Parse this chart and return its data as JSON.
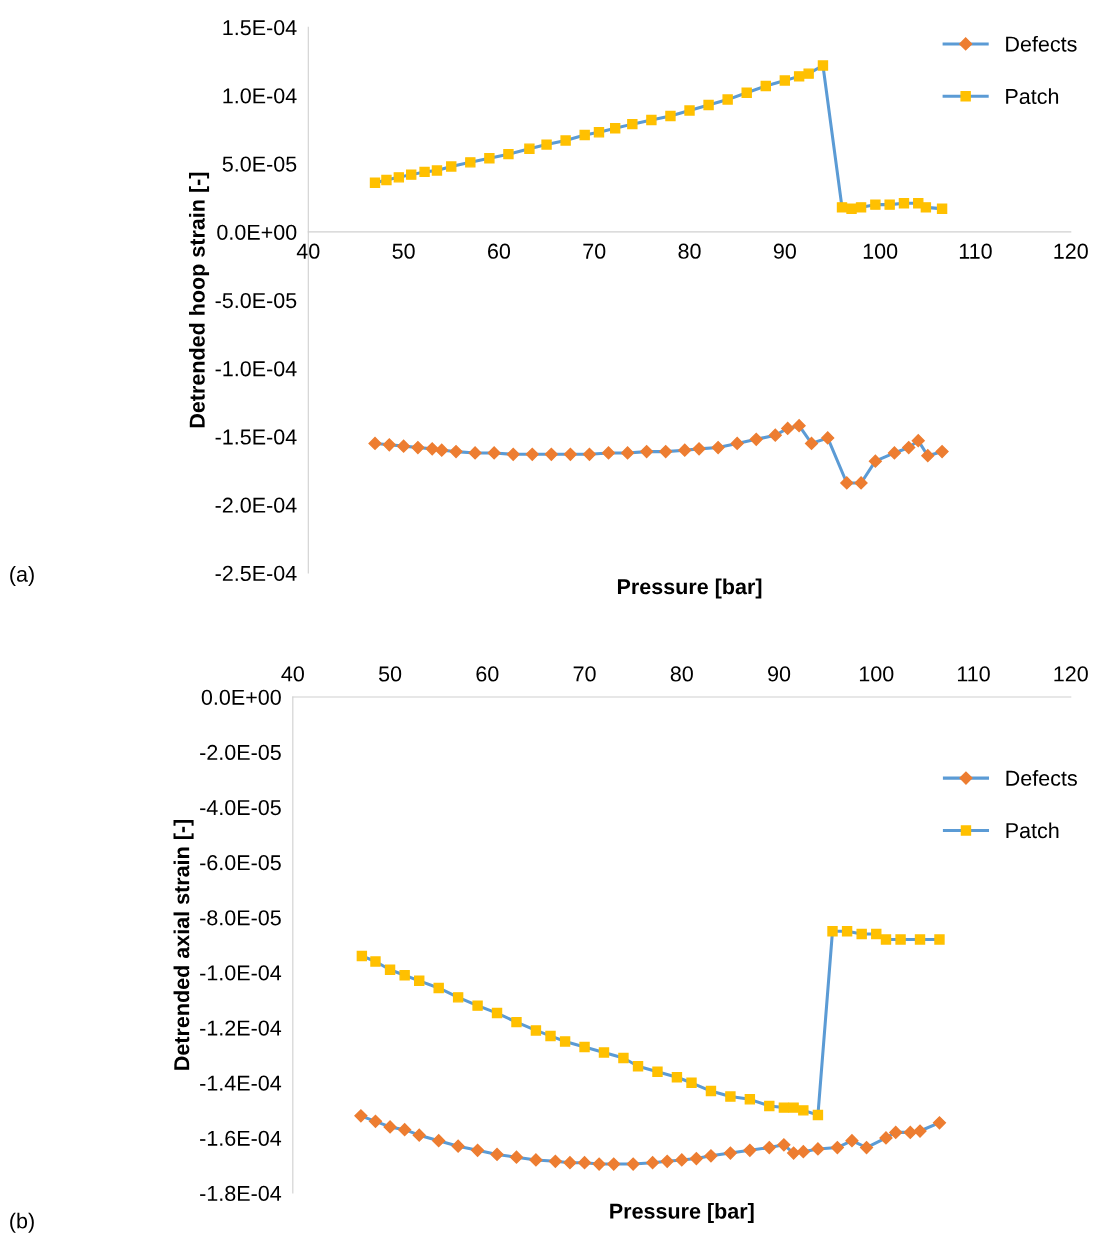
{
  "chart_data": [
    {
      "type": "line",
      "xlabel": "Pressure [bar]",
      "ylabel": "Detrended hoop strain [-]",
      "annotations": [
        "(a)"
      ],
      "xlim": [
        40,
        120
      ],
      "xticks": [
        40,
        50,
        60,
        70,
        80,
        90,
        100,
        110,
        120
      ],
      "ylim": [
        -0.00025,
        0.00015
      ],
      "yticks": [
        {
          "value": -0.00025,
          "label": "-2.5E-04"
        },
        {
          "value": -0.0002,
          "label": "-2.0E-04"
        },
        {
          "value": -0.00015,
          "label": "-1.5E-04"
        },
        {
          "value": -0.0001,
          "label": "-1.0E-04"
        },
        {
          "value": -5e-05,
          "label": "-5.0E-05"
        },
        {
          "value": 0,
          "label": "0.0E+00"
        },
        {
          "value": 5e-05,
          "label": "5.0E-05"
        },
        {
          "value": 0.0001,
          "label": "1.0E-04"
        },
        {
          "value": 0.00015,
          "label": "1.5E-04"
        }
      ],
      "grid": false,
      "legend": "top right",
      "line_style": "solid",
      "series": [
        {
          "name": "Defects",
          "color": "#ed7d31",
          "marker": "diamond",
          "x": [
            47.0,
            48.5,
            50.0,
            51.5,
            53.0,
            54.0,
            55.5,
            57.5,
            59.5,
            61.5,
            63.5,
            65.5,
            67.5,
            69.5,
            71.5,
            73.5,
            75.5,
            77.5,
            79.5,
            81.0,
            83.0,
            85.0,
            87.0,
            89.0,
            90.3,
            91.5,
            92.8,
            94.5,
            96.5,
            98.0,
            99.5,
            101.5,
            103.0,
            104.0,
            105.0,
            106.5
          ],
          "values": [
            -0.000155,
            -0.000156,
            -0.000157,
            -0.000158,
            -0.000159,
            -0.00016,
            -0.000161,
            -0.000162,
            -0.000162,
            -0.000163,
            -0.000163,
            -0.000163,
            -0.000163,
            -0.000163,
            -0.000162,
            -0.000162,
            -0.000161,
            -0.000161,
            -0.00016,
            -0.000159,
            -0.000158,
            -0.000155,
            -0.000152,
            -0.000149,
            -0.000144,
            -0.000142,
            -0.000155,
            -0.000151,
            -0.000184,
            -0.000184,
            -0.000168,
            -0.000162,
            -0.000158,
            -0.000153,
            -0.000164,
            -0.000161
          ]
        },
        {
          "name": "Patch",
          "color": "#ffc000",
          "marker": "square",
          "x": [
            47.0,
            48.2,
            49.5,
            50.8,
            52.2,
            53.5,
            55.0,
            57.0,
            59.0,
            61.0,
            63.2,
            65.0,
            67.0,
            69.0,
            70.5,
            72.2,
            74.0,
            76.0,
            78.0,
            80.0,
            82.0,
            84.0,
            86.0,
            88.0,
            90.0,
            91.5,
            92.5,
            94.0,
            96.0,
            97.0,
            98.0,
            99.5,
            101.0,
            102.5,
            104.0,
            104.8,
            106.5
          ],
          "values": [
            3.6e-05,
            3.8e-05,
            4e-05,
            4.2e-05,
            4.4e-05,
            4.5e-05,
            4.8e-05,
            5.1e-05,
            5.4e-05,
            5.7e-05,
            6.1e-05,
            6.4e-05,
            6.7e-05,
            7.1e-05,
            7.3e-05,
            7.6e-05,
            7.9e-05,
            8.2e-05,
            8.5e-05,
            8.9e-05,
            9.3e-05,
            9.7e-05,
            0.000102,
            0.000107,
            0.000111,
            0.000114,
            0.000116,
            0.000122,
            1.8e-05,
            1.7e-05,
            1.8e-05,
            2e-05,
            2e-05,
            2.1e-05,
            2.1e-05,
            1.8e-05,
            1.7e-05
          ]
        }
      ]
    },
    {
      "type": "line",
      "xlabel": "Pressure [bar]",
      "ylabel": "Detrended axial strain [-]",
      "annotations": [
        "(b)"
      ],
      "xlim": [
        40,
        120
      ],
      "xticks": [
        40,
        50,
        60,
        70,
        80,
        90,
        100,
        110,
        120
      ],
      "ylim": [
        -0.00018,
        0
      ],
      "yticks": [
        {
          "value": -0.00018,
          "label": "-1.8E-04"
        },
        {
          "value": -0.00016,
          "label": "-1.6E-04"
        },
        {
          "value": -0.00014,
          "label": "-1.4E-04"
        },
        {
          "value": -0.00012,
          "label": "-1.2E-04"
        },
        {
          "value": -0.0001,
          "label": "-1.0E-04"
        },
        {
          "value": -8e-05,
          "label": "-8.0E-05"
        },
        {
          "value": -6e-05,
          "label": "-6.0E-05"
        },
        {
          "value": -4e-05,
          "label": "-4.0E-05"
        },
        {
          "value": -2e-05,
          "label": "-2.0E-05"
        },
        {
          "value": 0,
          "label": "0.0E+00"
        }
      ],
      "grid": false,
      "legend": "top right",
      "line_style": "solid",
      "series": [
        {
          "name": "Defects",
          "color": "#ed7d31",
          "marker": "diamond",
          "x": [
            47.0,
            48.5,
            50.0,
            51.5,
            53.0,
            55.0,
            57.0,
            59.0,
            61.0,
            63.0,
            65.0,
            67.0,
            68.5,
            70.0,
            71.5,
            73.0,
            75.0,
            77.0,
            78.5,
            80.0,
            81.5,
            83.0,
            85.0,
            87.0,
            89.0,
            90.5,
            91.5,
            92.5,
            94.0,
            96.0,
            97.5,
            99.0,
            101.0,
            102.0,
            103.5,
            104.5,
            106.5
          ],
          "values": [
            -0.000152,
            -0.000154,
            -0.000156,
            -0.000157,
            -0.000159,
            -0.000161,
            -0.000163,
            -0.0001645,
            -0.000166,
            -0.000167,
            -0.000168,
            -0.0001685,
            -0.000169,
            -0.000169,
            -0.0001695,
            -0.0001695,
            -0.0001695,
            -0.000169,
            -0.0001685,
            -0.000168,
            -0.0001675,
            -0.0001665,
            -0.0001655,
            -0.0001645,
            -0.0001635,
            -0.0001625,
            -0.0001655,
            -0.000165,
            -0.000164,
            -0.0001635,
            -0.000161,
            -0.0001635,
            -0.00016,
            -0.000158,
            -0.000158,
            -0.0001575,
            -0.0001545
          ]
        },
        {
          "name": "Patch",
          "color": "#ffc000",
          "marker": "square",
          "x": [
            47.1,
            48.5,
            50.0,
            51.5,
            53.0,
            55.0,
            57.0,
            59.0,
            61.0,
            63.0,
            65.0,
            66.5,
            68.0,
            70.0,
            72.0,
            74.0,
            75.5,
            77.5,
            79.5,
            81.0,
            83.0,
            85.0,
            87.0,
            89.0,
            90.5,
            91.5,
            92.5,
            94.0,
            95.5,
            97.0,
            98.5,
            100.0,
            101.0,
            102.5,
            104.5,
            106.5
          ],
          "values": [
            -9.4e-05,
            -9.6e-05,
            -9.9e-05,
            -0.000101,
            -0.000103,
            -0.0001056,
            -0.000109,
            -0.000112,
            -0.0001147,
            -0.000118,
            -0.000121,
            -0.000123,
            -0.000125,
            -0.000127,
            -0.000129,
            -0.000131,
            -0.000134,
            -0.000136,
            -0.000138,
            -0.00014,
            -0.000143,
            -0.000145,
            -0.000146,
            -0.0001484,
            -0.000149,
            -0.000149,
            -0.00015,
            -0.0001517,
            -8.5e-05,
            -8.5e-05,
            -8.6e-05,
            -8.6e-05,
            -8.8e-05,
            -8.8e-05,
            -8.8e-05,
            -8.8e-05
          ]
        }
      ]
    }
  ]
}
